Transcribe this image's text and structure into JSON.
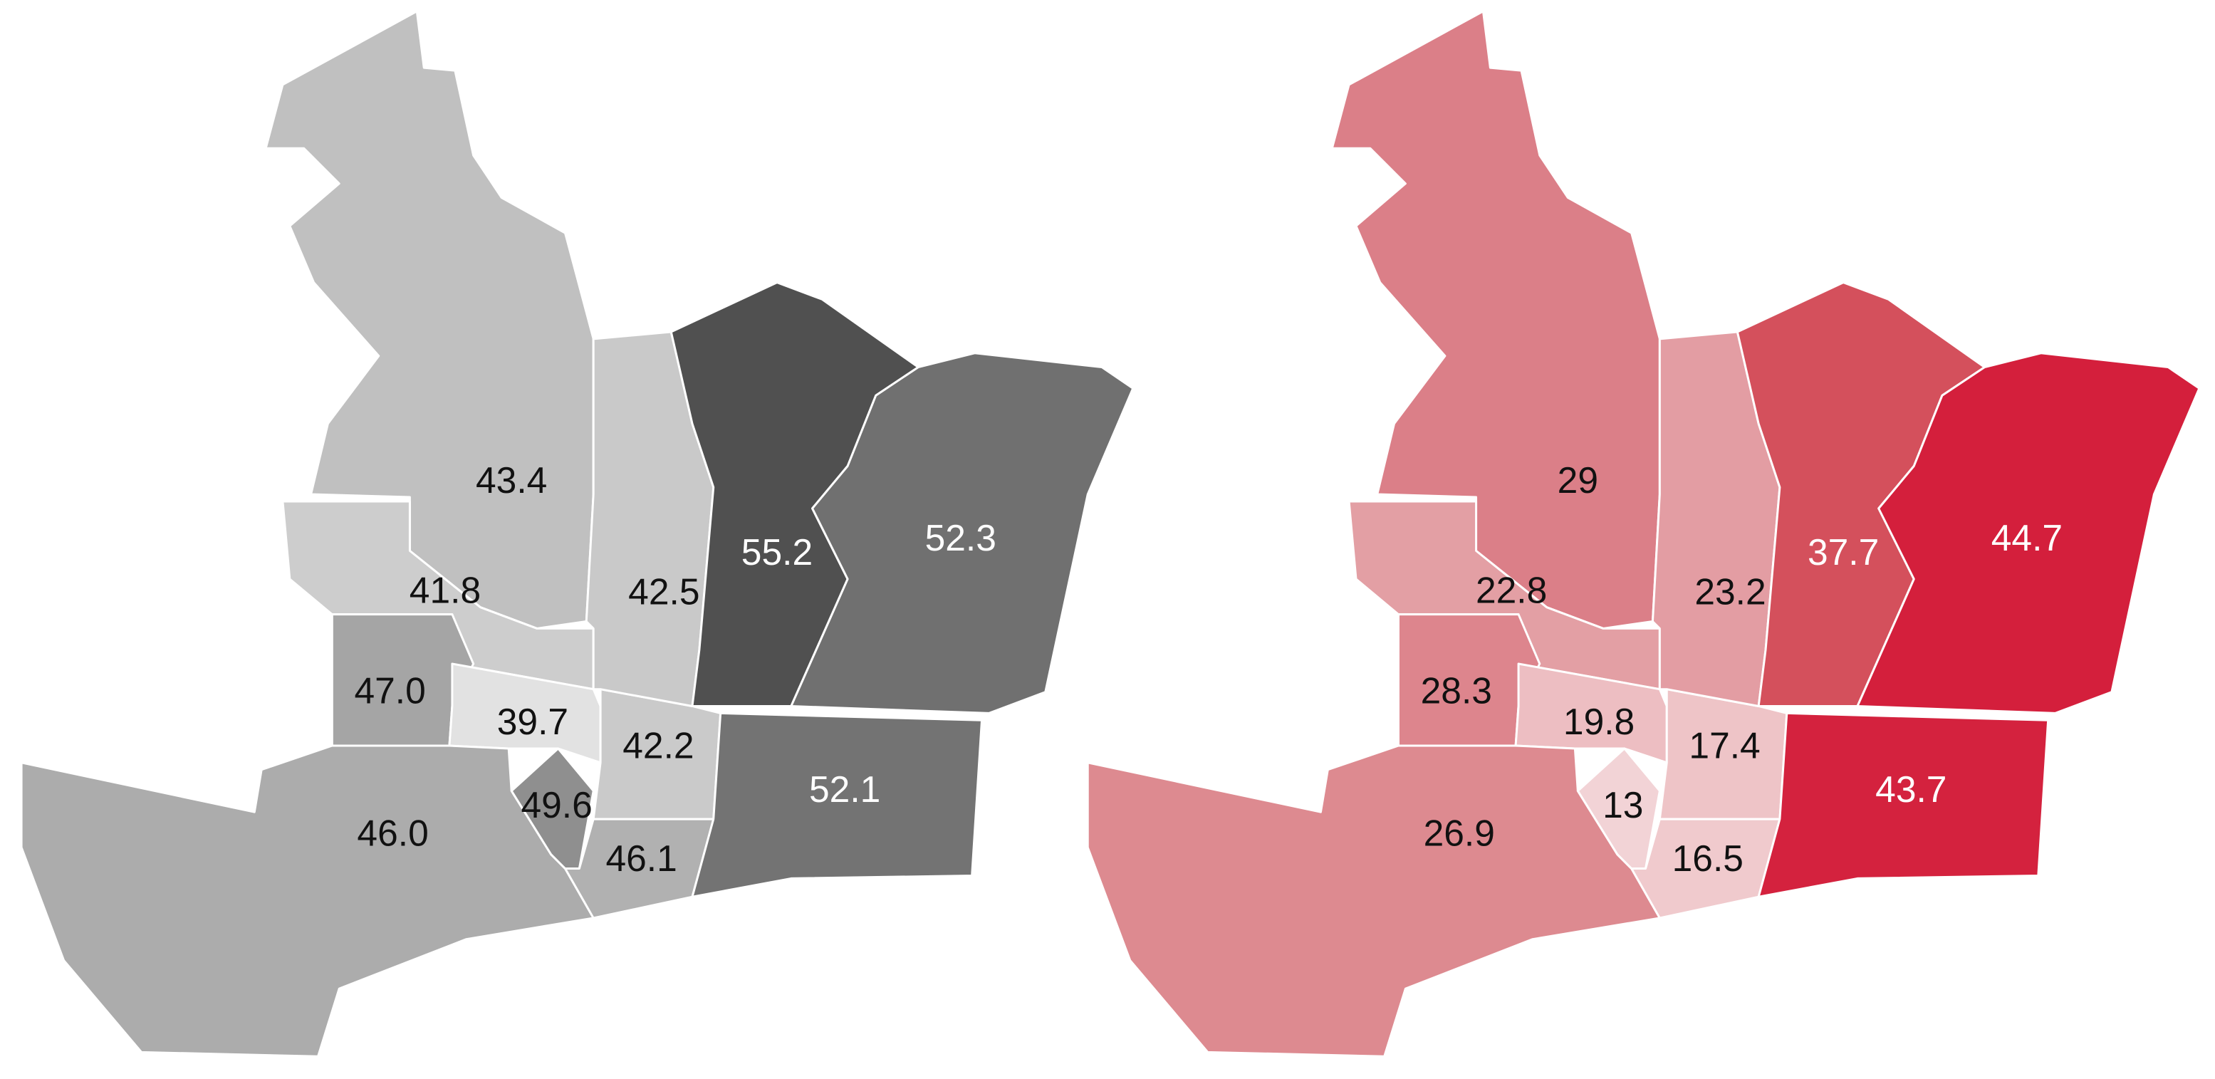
{
  "maps": [
    {
      "regions": [
        {
          "label": "43.4",
          "color": "#c0c0c0"
        },
        {
          "label": "41.8",
          "color": "#cdcdcd"
        },
        {
          "label": "47.0",
          "color": "#a5a5a5"
        },
        {
          "label": "39.7",
          "color": "#e2e2e2"
        },
        {
          "label": "46.0",
          "color": "#acacac"
        },
        {
          "label": "49.6",
          "color": "#8f8f8f"
        },
        {
          "label": "42.2",
          "color": "#cacaca"
        },
        {
          "label": "46.1",
          "color": "#b1b1b1"
        },
        {
          "label": "42.5",
          "color": "#c9c9c9"
        },
        {
          "label": "55.2",
          "color": "#505050"
        },
        {
          "label": "52.3",
          "color": "#707070"
        },
        {
          "label": "52.1",
          "color": "#737373"
        }
      ]
    },
    {
      "regions": [
        {
          "label": "29",
          "color": "#db7f88"
        },
        {
          "label": "22.8",
          "color": "#e39fa4"
        },
        {
          "label": "28.3",
          "color": "#dd858d"
        },
        {
          "label": "19.8",
          "color": "#edbec2"
        },
        {
          "label": "26.9",
          "color": "#dd8a90"
        },
        {
          "label": "13",
          "color": "#f2d3d6"
        },
        {
          "label": "17.4",
          "color": "#eec4c7"
        },
        {
          "label": "16.5",
          "color": "#f0cacd"
        },
        {
          "label": "23.2",
          "color": "#e39da3"
        },
        {
          "label": "37.7",
          "color": "#d4505c"
        },
        {
          "label": "44.7",
          "color": "#d41f3c"
        },
        {
          "label": "43.7",
          "color": "#d4223e"
        }
      ]
    }
  ]
}
